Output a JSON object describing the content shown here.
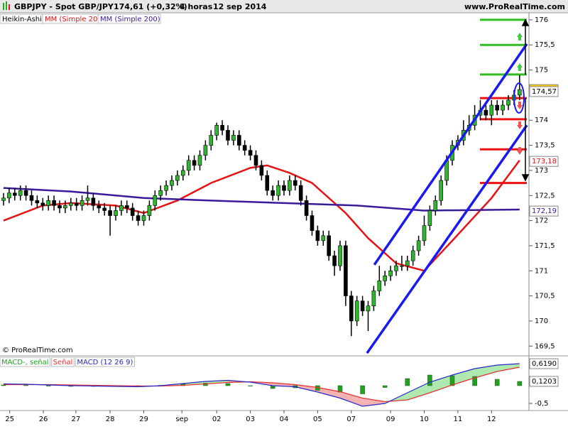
{
  "header": {
    "symbol": "GBPJPY - Spot GBP/JPY",
    "quote": "174,61 (+0,32%)",
    "period": "4 horas",
    "date": "12 sep 2014",
    "site": "www.ProRealTime.com"
  },
  "footer": {
    "copyright": "© ProRealTime.com"
  },
  "chart_data": [
    {
      "type": "candlestick",
      "name": "Heikin-Ashi",
      "up_color": "#2fb52f",
      "down_color": "#000000",
      "open": [
        172.4,
        172.45,
        172.55,
        172.5,
        172.6,
        172.5,
        172.4,
        172.35,
        172.3,
        172.4,
        172.3,
        172.25,
        172.3,
        172.35,
        172.3,
        172.4,
        172.45,
        172.3,
        172.25,
        172.2,
        172.1,
        172.2,
        172.3,
        172.25,
        172.1,
        172.0,
        172.1,
        172.3,
        172.5,
        172.6,
        172.7,
        172.8,
        172.9,
        173.0,
        173.2,
        173.1,
        173.3,
        173.5,
        173.7,
        173.9,
        173.8,
        173.6,
        173.7,
        173.5,
        173.4,
        173.3,
        173.1,
        172.9,
        172.6,
        172.5,
        172.7,
        172.6,
        172.8,
        172.7,
        172.4,
        172.1,
        171.8,
        171.6,
        171.7,
        171.3,
        171.1,
        171.5,
        170.5,
        170.0,
        170.4,
        170.2,
        170.3,
        170.6,
        170.8,
        170.9,
        171.0,
        171.1,
        171.1,
        171.2,
        171.4,
        171.6,
        171.9,
        172.2,
        172.4,
        172.8,
        173.2,
        173.5,
        173.6,
        173.8,
        173.9,
        174.1,
        174.2,
        174.1,
        174.3,
        174.2,
        174.3,
        174.4,
        174.5
      ],
      "high": [
        172.55,
        172.65,
        172.65,
        172.7,
        172.7,
        172.6,
        172.5,
        172.45,
        172.5,
        172.5,
        172.4,
        172.4,
        172.45,
        172.45,
        172.5,
        172.7,
        172.55,
        172.4,
        172.35,
        172.3,
        172.3,
        172.4,
        172.4,
        172.35,
        172.2,
        172.2,
        172.4,
        172.6,
        172.7,
        172.8,
        172.9,
        173.0,
        173.1,
        173.3,
        173.3,
        173.4,
        173.6,
        173.8,
        173.95,
        174.0,
        173.9,
        173.8,
        173.8,
        173.6,
        173.5,
        173.4,
        173.2,
        173.0,
        172.7,
        172.8,
        172.8,
        172.9,
        172.9,
        172.8,
        172.5,
        172.2,
        171.9,
        171.8,
        171.8,
        171.4,
        171.6,
        171.6,
        170.6,
        170.5,
        170.5,
        170.4,
        170.7,
        171.1,
        171.0,
        171.1,
        171.2,
        171.3,
        171.3,
        171.5,
        171.7,
        172.1,
        172.3,
        172.5,
        172.9,
        173.3,
        173.6,
        173.7,
        174.0,
        174.1,
        174.3,
        174.4,
        174.3,
        174.4,
        174.4,
        174.4,
        174.5,
        174.6,
        174.9
      ],
      "low": [
        172.3,
        172.35,
        172.4,
        172.4,
        172.4,
        172.3,
        172.25,
        172.2,
        172.2,
        172.2,
        172.15,
        172.15,
        172.2,
        172.2,
        172.2,
        172.3,
        172.2,
        172.15,
        172.1,
        171.7,
        172.0,
        172.1,
        172.15,
        172.0,
        171.9,
        171.9,
        172.0,
        172.2,
        172.4,
        172.5,
        172.6,
        172.7,
        172.8,
        172.9,
        173.0,
        173.0,
        173.2,
        173.4,
        173.6,
        173.7,
        173.5,
        173.5,
        173.4,
        173.3,
        173.2,
        173.0,
        172.8,
        172.5,
        172.4,
        172.4,
        172.5,
        172.5,
        172.6,
        172.3,
        172.0,
        171.7,
        171.5,
        171.5,
        171.2,
        170.9,
        171.0,
        170.3,
        169.7,
        169.9,
        170.1,
        169.8,
        170.2,
        170.5,
        170.7,
        170.8,
        170.9,
        171.0,
        171.0,
        171.1,
        171.3,
        171.5,
        171.8,
        172.1,
        172.3,
        172.7,
        173.1,
        173.4,
        173.5,
        173.7,
        173.8,
        174.0,
        174.0,
        173.9,
        174.1,
        174.1,
        174.2,
        174.3,
        174.4
      ],
      "close": [
        172.45,
        172.55,
        172.5,
        172.6,
        172.5,
        172.4,
        172.35,
        172.3,
        172.4,
        172.3,
        172.25,
        172.3,
        172.35,
        172.3,
        172.4,
        172.45,
        172.3,
        172.25,
        172.2,
        172.1,
        172.2,
        172.3,
        172.25,
        172.1,
        172.0,
        172.1,
        172.3,
        172.5,
        172.6,
        172.7,
        172.8,
        172.9,
        173.0,
        173.2,
        173.1,
        173.3,
        173.5,
        173.7,
        173.9,
        173.8,
        173.6,
        173.7,
        173.5,
        173.4,
        173.3,
        173.1,
        172.9,
        172.6,
        172.5,
        172.7,
        172.6,
        172.8,
        172.7,
        172.4,
        172.1,
        171.8,
        171.6,
        171.7,
        171.3,
        171.1,
        171.5,
        170.5,
        170.0,
        170.4,
        170.2,
        170.3,
        170.6,
        170.8,
        170.9,
        171.0,
        171.1,
        171.1,
        171.2,
        171.4,
        171.6,
        171.9,
        172.2,
        172.4,
        172.8,
        173.2,
        173.5,
        173.6,
        173.8,
        173.9,
        174.1,
        174.2,
        174.1,
        174.3,
        174.2,
        174.3,
        174.4,
        174.5,
        174.61
      ],
      "lines": [
        {
          "name": "MM (Simple 20)",
          "color": "#e41414",
          "x": [
            0,
            7,
            12,
            20,
            25,
            31,
            37,
            44,
            47,
            51,
            55,
            61,
            65,
            70,
            75,
            80,
            87,
            92
          ],
          "values": [
            172.0,
            172.3,
            172.35,
            172.3,
            172.15,
            172.4,
            172.75,
            173.05,
            173.1,
            172.95,
            172.75,
            172.15,
            171.65,
            171.15,
            171.0,
            171.6,
            172.45,
            173.2
          ]
        },
        {
          "name": "MM (Simple 200)",
          "color": "#3a1a9a",
          "x": [
            0,
            12,
            25,
            37,
            50,
            63,
            75,
            92
          ],
          "values": [
            172.65,
            172.58,
            172.45,
            172.4,
            172.35,
            172.3,
            172.2,
            172.22
          ]
        }
      ],
      "channel": [
        {
          "color": "#1a1aee",
          "x": [
            66.1,
            93.3
          ],
          "values": [
            171.12,
            175.52
          ]
        },
        {
          "color": "#1a1aee",
          "x": [
            64.8,
            93.3
          ],
          "values": [
            169.36,
            173.9
          ]
        }
      ],
      "levels": [
        {
          "value": 176,
          "color": "#33bb22"
        },
        {
          "value": 175.5,
          "color": "#33bb22"
        },
        {
          "value": 174.91,
          "color": "#33bb22"
        },
        {
          "value": 174.44,
          "color": "#ee1111"
        },
        {
          "value": 174.02,
          "color": "#ee1111"
        },
        {
          "value": 173.42,
          "color": "#ee1111"
        },
        {
          "value": 172.75,
          "color": "#ee1111"
        }
      ],
      "price_labels": [
        {
          "value": 174.61,
          "label": "174,61",
          "color": "#000000",
          "background": "#ffcc00"
        },
        {
          "value": 174.57,
          "label": "174,57",
          "color": "#000000",
          "background": "#ffffff"
        },
        {
          "value": 173.18,
          "label": "173,18",
          "color": "#e41414",
          "background": "#ffffff"
        },
        {
          "value": 172.19,
          "label": "172,19",
          "color": "#3a1a9a",
          "background": "#ffffff"
        }
      ],
      "xlim": [
        -0.63,
        93.67
      ],
      "ylim": [
        169.32,
        176.14
      ],
      "yticks": [
        176,
        {
          "value": 175.5,
          "label": "175,5"
        },
        175,
        174,
        {
          "value": 173.5,
          "label": "173,5"
        },
        173,
        {
          "value": 172.5,
          "label": "172,5"
        },
        172,
        {
          "value": 171.5,
          "label": "171,5"
        },
        171,
        {
          "value": 170.5,
          "label": "170,5"
        },
        170,
        {
          "value": 169.5,
          "label": "169,5"
        }
      ],
      "xticks": [
        {
          "value": 1.1,
          "label": "25"
        },
        {
          "value": 7.1,
          "label": "26"
        },
        {
          "value": 12.9,
          "label": "27"
        },
        {
          "value": 19,
          "label": "28"
        },
        {
          "value": 25,
          "label": "29"
        },
        {
          "value": 31.8,
          "label": "sep"
        },
        {
          "value": 38,
          "label": "02"
        },
        {
          "value": 44,
          "label": "03"
        },
        {
          "value": 50,
          "label": "04"
        },
        {
          "value": 56,
          "label": "05"
        },
        {
          "value": 62,
          "label": "07"
        },
        {
          "value": 69,
          "label": "09"
        },
        {
          "value": 75,
          "label": "10"
        },
        {
          "value": 81,
          "label": "11"
        },
        {
          "value": 87,
          "label": "12"
        }
      ]
    },
    {
      "type": "macd",
      "xlim": [
        -0.63,
        93.67
      ],
      "ylim": [
        -0.7,
        0.8
      ],
      "x": [
        0,
        4,
        8,
        12,
        16,
        20,
        24,
        28,
        32,
        36,
        40,
        44,
        48,
        52,
        56,
        60,
        64,
        68,
        72,
        76,
        80,
        84,
        88,
        92
      ],
      "series": [
        {
          "name": "MACD-, señal",
          "color": "#22a022",
          "values": [
            0.02,
            0.01,
            -0.01,
            -0.02,
            -0.02,
            -0.02,
            -0.02,
            0.01,
            0.05,
            0.07,
            0.06,
            -0.01,
            -0.08,
            -0.06,
            -0.13,
            -0.18,
            -0.23,
            -0.05,
            0.2,
            0.3,
            0.28,
            0.26,
            0.18,
            0.12
          ]
        },
        {
          "name": "Señal",
          "color": "#e83030",
          "values": [
            0.03,
            0.03,
            0.03,
            0.02,
            0.01,
            0.0,
            -0.01,
            -0.01,
            0.01,
            0.05,
            0.09,
            0.11,
            0.08,
            0.03,
            -0.05,
            -0.17,
            -0.35,
            -0.45,
            -0.4,
            -0.2,
            0.02,
            0.22,
            0.4,
            0.52
          ]
        },
        {
          "name": "MACD (12 26 9)",
          "color": "#2828c8",
          "values": [
            0.05,
            0.04,
            0.02,
            0.0,
            -0.01,
            -0.02,
            -0.03,
            0.0,
            0.06,
            0.12,
            0.15,
            0.1,
            0.0,
            -0.03,
            -0.18,
            -0.35,
            -0.58,
            -0.5,
            -0.2,
            0.1,
            0.3,
            0.48,
            0.58,
            0.62
          ]
        }
      ],
      "yticks": [
        {
          "value": -0.5,
          "label": "-0,5"
        }
      ],
      "price_labels": [
        {
          "value": 0.619,
          "label": "0,6190",
          "color": "#000000",
          "background": "#ffffff"
        },
        {
          "value": 0.1203,
          "label": "0,1203",
          "color": "#000000",
          "background": "#ffffff"
        }
      ]
    }
  ]
}
